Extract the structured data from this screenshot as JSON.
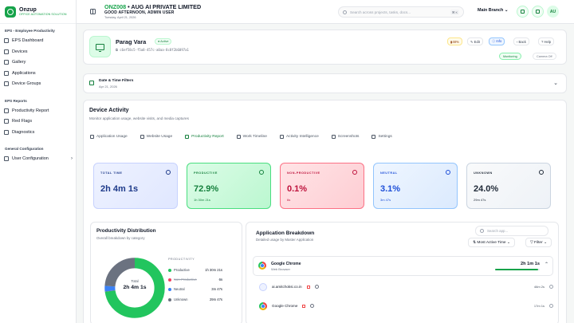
{
  "brand": {
    "name": "Onzup",
    "tagline": "OFFICE AUTOMATION SOLUTION"
  },
  "sidebar": {
    "sections": [
      {
        "title": "EPS - Employee Productivity",
        "items": [
          {
            "label": "EPS Dashboard",
            "icon": "grid-icon"
          },
          {
            "label": "Devices",
            "icon": "monitor-icon"
          },
          {
            "label": "Gallery",
            "icon": "image-icon"
          },
          {
            "label": "Applications",
            "icon": "app-icon"
          },
          {
            "label": "Device Groups",
            "icon": "group-icon"
          }
        ]
      },
      {
        "title": "EPS Reports",
        "items": [
          {
            "label": "Productivity Report",
            "icon": "report-icon"
          },
          {
            "label": "Red Flags",
            "icon": "flag-icon"
          },
          {
            "label": "Diagnostics",
            "icon": "pulse-icon"
          }
        ]
      },
      {
        "title": "General Configuration",
        "items": [
          {
            "label": "User Configuration",
            "icon": "user-icon",
            "chevron": "›"
          }
        ]
      }
    ]
  },
  "header": {
    "org_code": "ONZ008",
    "org_sep": " • ",
    "org_name": "AUG AI PRIVATE LIMITED",
    "greeting": "GOOD AFTERNOON, ADMIN USER",
    "date": "Tuesday, April 21, 2026",
    "search_placeholder": "Search across projects, tasks, docs...",
    "search_kbd": "⌘ K",
    "branch": "Main Branch",
    "branch_chevron": "⌄",
    "avatar_initials": "AU"
  },
  "profile": {
    "name": "Parag Vara",
    "status": "● Active",
    "uuid": "⧉  c6ef58c5-f5a8-457c-a0aa-8c8f2b6097a1",
    "buttons": [
      {
        "label": "48%",
        "icon": "battery-icon"
      },
      {
        "label": "✎ Edit"
      },
      {
        "label": "ⓘ Info"
      },
      {
        "label": "‹ Back"
      },
      {
        "label": "? Help"
      }
    ],
    "pills": [
      "Monitoring",
      "Camera Off"
    ]
  },
  "filters": {
    "title": "Date & Time Filters",
    "subtitle": "Apr 21, 2026",
    "chevron": "⌄"
  },
  "activity": {
    "title": "Device Activity",
    "subtitle": "Monitor application usage, website visits, and media captures",
    "tabs": [
      "Application Usage",
      "Website Usage",
      "Productivity Report",
      "Work Timeline",
      "Activity Intelligence",
      "Screenshots",
      "Settings"
    ],
    "active_tab": 2
  },
  "stats": [
    {
      "label": "TOTAL TIME",
      "value": "2h 4m 1s",
      "sub": "",
      "icon": "clock-icon",
      "accent": "#1e3a8a"
    },
    {
      "label": "PRODUCTIVE",
      "value": "72.9%",
      "sub": "1h 30m 21s",
      "icon": "trend-up-icon",
      "accent": "#15803d"
    },
    {
      "label": "NON-PRODUCTIVE",
      "value": "0.1%",
      "sub": "6s",
      "icon": "trend-down-icon",
      "accent": "#be123c"
    },
    {
      "label": "NEUTRAL",
      "value": "3.1%",
      "sub": "3m 47s",
      "icon": "minus-icon",
      "accent": "#1d4ed8"
    },
    {
      "label": "UNKNOWN",
      "value": "24.0%",
      "sub": "29m 47s",
      "icon": "question-icon",
      "accent": "#1f2937"
    }
  ],
  "distribution": {
    "title": "Productivity Distribution",
    "subtitle": "Overall breakdown by category",
    "center_label": "Total",
    "center_value": "2h 4m 1s",
    "legend_title": "PRODUCTIVITY",
    "legend": [
      {
        "name": "Productive",
        "value": "1h 30m 21s",
        "color": "#22c55e",
        "pct": 72.9
      },
      {
        "name": "Non-Productive",
        "value": "6s",
        "color": "#f43f5e",
        "pct": 0.1,
        "muted": true
      },
      {
        "name": "Neutral",
        "value": "3m 47s",
        "color": "#3b82f6",
        "pct": 3.1
      },
      {
        "name": "Unknown",
        "value": "29m 47s",
        "color": "#6b7280",
        "pct": 24.0
      }
    ]
  },
  "breakdown": {
    "title": "Application Breakdown",
    "subtitle": "Detailed usage by Master Application",
    "search_placeholder": "Search app...",
    "sort_label": "⇅  Most Active Time  ⌄",
    "filter_label": "▽  Filter  ⌄",
    "main_app": {
      "name": "Google Chrome",
      "type": "Web Browser",
      "time": "2h 1m 1s",
      "progress": 0.97,
      "chevron": "⌃"
    },
    "rows": [
      {
        "name": "ai.amitchoksi.co.in",
        "value": "46m 2s"
      },
      {
        "name": "Google Chrome",
        "value": "17m 1s"
      }
    ]
  }
}
